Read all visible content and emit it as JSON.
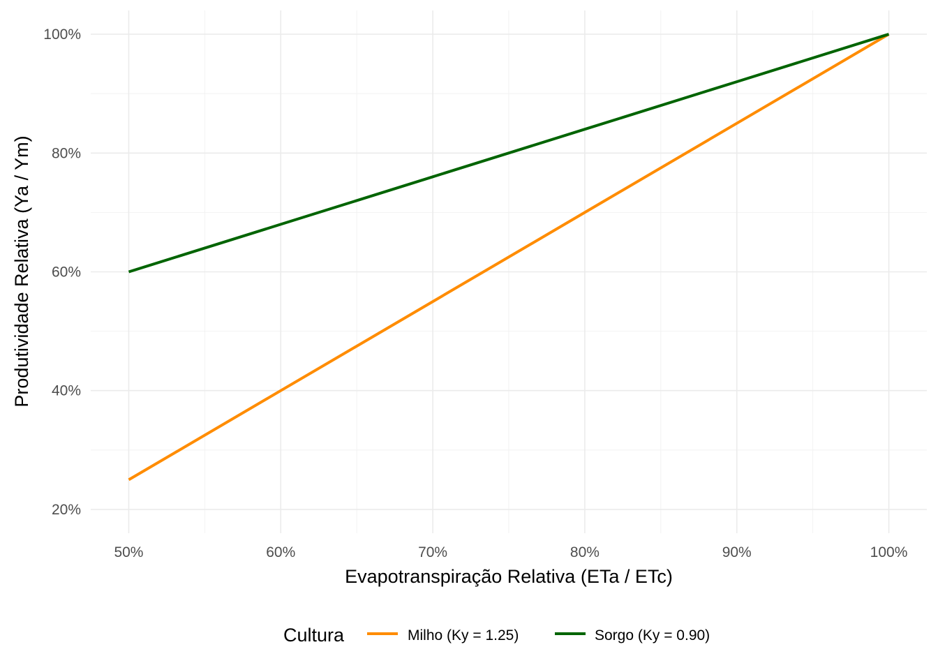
{
  "chart_data": {
    "type": "line",
    "title": "",
    "xlabel": "Evapotranspiração Relativa (ETa / ETc)",
    "ylabel": "Produtividade Relativa (Ya / Ym)",
    "xlim": [
      0.475,
      1.025
    ],
    "ylim": [
      0.16,
      1.04
    ],
    "x_ticks": [
      0.5,
      0.6,
      0.7,
      0.8,
      0.9,
      1.0
    ],
    "x_tick_labels": [
      "50%",
      "60%",
      "70%",
      "80%",
      "90%",
      "100%"
    ],
    "y_ticks": [
      0.2,
      0.4,
      0.6,
      0.8,
      1.0
    ],
    "y_tick_labels": [
      "20%",
      "40%",
      "60%",
      "80%",
      "100%"
    ],
    "grid": true,
    "legend": {
      "title": "Cultura",
      "position": "bottom"
    },
    "x": [
      0.5,
      0.6,
      0.7,
      0.8,
      0.9,
      1.0
    ],
    "series": [
      {
        "name": "Milho (Ky = 1.25)",
        "color": "#FF8C00",
        "values": [
          0.25,
          0.4,
          0.55,
          0.7,
          0.85,
          1.0
        ]
      },
      {
        "name": "Sorgo (Ky = 0.90)",
        "color": "#006400",
        "values": [
          0.6,
          0.68,
          0.76,
          0.84,
          0.92,
          1.0
        ]
      }
    ]
  }
}
